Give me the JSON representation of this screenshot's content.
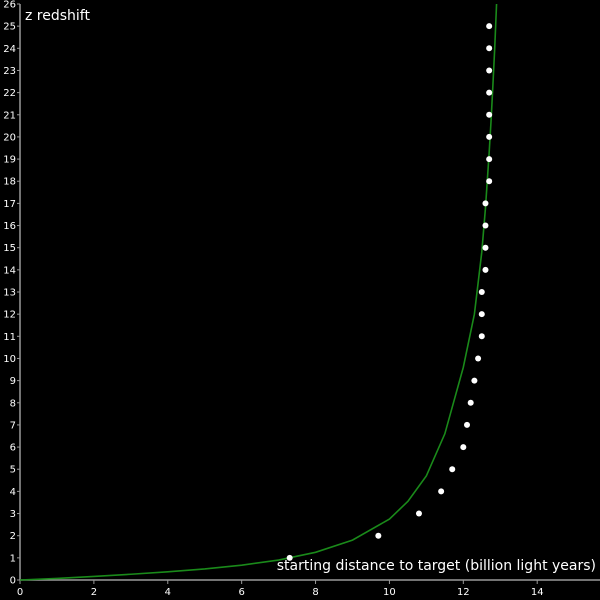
{
  "chart_data": {
    "type": "scatter",
    "xlabel": "starting distance to target (billion light years)",
    "ylabel": "z redshift",
    "xlim": [
      0,
      15.7
    ],
    "ylim": [
      0,
      26
    ],
    "x_ticks": [
      0,
      2,
      4,
      6,
      8,
      10,
      12,
      14
    ],
    "y_ticks": [
      0,
      1,
      2,
      3,
      4,
      5,
      6,
      7,
      8,
      9,
      10,
      11,
      12,
      13,
      14,
      15,
      16,
      17,
      18,
      19,
      20,
      21,
      22,
      23,
      24,
      25,
      26
    ],
    "grid": false,
    "background_color": "#000000",
    "axis_color": "#9a9a9a",
    "series": [
      {
        "kind": "line",
        "color": "#1a8a1a",
        "x": [
          0,
          1,
          2,
          3,
          4,
          5,
          6,
          7,
          8,
          9,
          10,
          10.5,
          11,
          11.5,
          12,
          12.3,
          12.5,
          12.6,
          12.7,
          12.75,
          12.8,
          12.85,
          12.9
        ],
        "y": [
          0,
          0.07,
          0.16,
          0.26,
          0.37,
          0.5,
          0.67,
          0.9,
          1.25,
          1.8,
          2.75,
          3.55,
          4.7,
          6.6,
          9.6,
          12.0,
          14.8,
          16.8,
          19.3,
          20.7,
          22.3,
          24.0,
          26.0
        ]
      },
      {
        "kind": "points",
        "color": "#ffffff",
        "x": [
          7.3,
          9.7,
          10.8,
          11.4,
          11.7,
          12.0,
          12.1,
          12.2,
          12.3,
          12.4,
          12.5,
          12.5,
          12.5,
          12.6,
          12.6,
          12.6,
          12.6,
          12.7,
          12.7,
          12.7,
          12.7,
          12.7,
          12.7,
          12.7,
          12.7
        ],
        "y": [
          1,
          2,
          3,
          4,
          5,
          6,
          7,
          8,
          9,
          10,
          11,
          12,
          13,
          14,
          15,
          16,
          17,
          18,
          19,
          20,
          21,
          22,
          23,
          24,
          25
        ]
      }
    ]
  }
}
